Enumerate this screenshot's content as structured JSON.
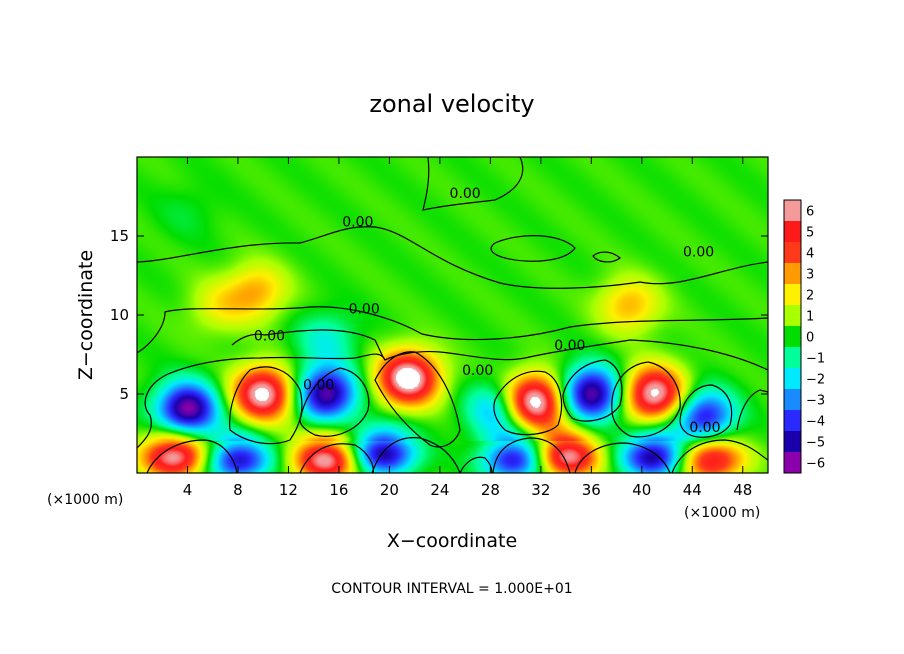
{
  "chart_data": {
    "type": "heatmap",
    "title": "zonal velocity",
    "xlabel": "X−coordinate",
    "ylabel": "Z−coordinate",
    "x_unit_left": "(×1000 m)",
    "x_unit_right": "(×1000 m)",
    "footer": "CONTOUR INTERVAL = 1.000E+01",
    "xlim": [
      0,
      50
    ],
    "ylim": [
      0,
      20
    ],
    "x_ticks": [
      4,
      8,
      12,
      16,
      20,
      24,
      28,
      32,
      36,
      40,
      44,
      48
    ],
    "y_ticks": [
      5,
      10,
      15
    ],
    "grid": false,
    "colorbar": {
      "levels": [
        6,
        5,
        4,
        3,
        2,
        1,
        0,
        -1,
        -2,
        -3,
        -4,
        -5,
        -6
      ],
      "labels": [
        "6",
        "5",
        "4",
        "3",
        "2",
        "1",
        "0",
        "−1",
        "−2",
        "−3",
        "−4",
        "−5",
        "−6"
      ],
      "colors": [
        "#f49a9a",
        "#ff1a1a",
        "#ff3a1a",
        "#ff9a00",
        "#fff000",
        "#aaff00",
        "#00dd00",
        "#00ff9a",
        "#00eaff",
        "#1a8aff",
        "#2a2aff",
        "#1a00aa",
        "#8a00aa"
      ]
    },
    "contour_labels": [
      {
        "text": "0.00",
        "x": 26,
        "z": 17.4
      },
      {
        "text": "0.00",
        "x": 17.5,
        "z": 15.6
      },
      {
        "text": "0.00",
        "x": 44.5,
        "z": 13.7
      },
      {
        "text": "0.00",
        "x": 18,
        "z": 10.1
      },
      {
        "text": "0.00",
        "x": 10.5,
        "z": 8.4
      },
      {
        "text": "0.00",
        "x": 34.3,
        "z": 7.8
      },
      {
        "text": "0.00",
        "x": 27,
        "z": 6.2
      },
      {
        "text": "0.00",
        "x": 14.4,
        "z": 5.3
      },
      {
        "text": "0.00",
        "x": 45,
        "z": 2.6
      }
    ],
    "features": [
      {
        "x": 4,
        "z": 4,
        "sign": -1,
        "value": 6.5
      },
      {
        "x": 10,
        "z": 5,
        "sign": 1,
        "value": 6.5
      },
      {
        "x": 15,
        "z": 5,
        "sign": -1,
        "value": 6.0
      },
      {
        "x": 21.5,
        "z": 6,
        "sign": 1,
        "value": 7.0
      },
      {
        "x": 31.5,
        "z": 4.5,
        "sign": 1,
        "value": 7.0
      },
      {
        "x": 36,
        "z": 5,
        "sign": -1,
        "value": 6.2
      },
      {
        "x": 41,
        "z": 5,
        "sign": 1,
        "value": 6.5
      },
      {
        "x": 45,
        "z": 3.5,
        "sign": -1,
        "value": 5.0
      },
      {
        "x": 3,
        "z": 1,
        "sign": 1,
        "value": 6.0
      },
      {
        "x": 8,
        "z": 0.8,
        "sign": -1,
        "value": 5.0
      },
      {
        "x": 15,
        "z": 0.8,
        "sign": 1,
        "value": 6.0
      },
      {
        "x": 19.5,
        "z": 1.2,
        "sign": -1,
        "value": 5.5
      },
      {
        "x": 30,
        "z": 0.8,
        "sign": -1,
        "value": 5.0
      },
      {
        "x": 34,
        "z": 1.0,
        "sign": 1,
        "value": 6.0
      },
      {
        "x": 41,
        "z": 1.0,
        "sign": -1,
        "value": 5.5
      },
      {
        "x": 45.5,
        "z": 0.8,
        "sign": 1,
        "value": 5.0
      },
      {
        "x": 9.5,
        "z": 11.5,
        "sign": 1,
        "value": 2.5
      },
      {
        "x": 6.5,
        "z": 10.5,
        "sign": 1,
        "value": 1.5
      },
      {
        "x": 39,
        "z": 10.6,
        "sign": 1,
        "value": 2.5
      },
      {
        "x": 15,
        "z": 8.5,
        "sign": -1,
        "value": 1.8
      },
      {
        "x": 28.5,
        "z": 4,
        "sign": -1,
        "value": 3.0
      },
      {
        "x": 4,
        "z": 16.5,
        "sign": -1,
        "value": 0.5
      }
    ]
  }
}
